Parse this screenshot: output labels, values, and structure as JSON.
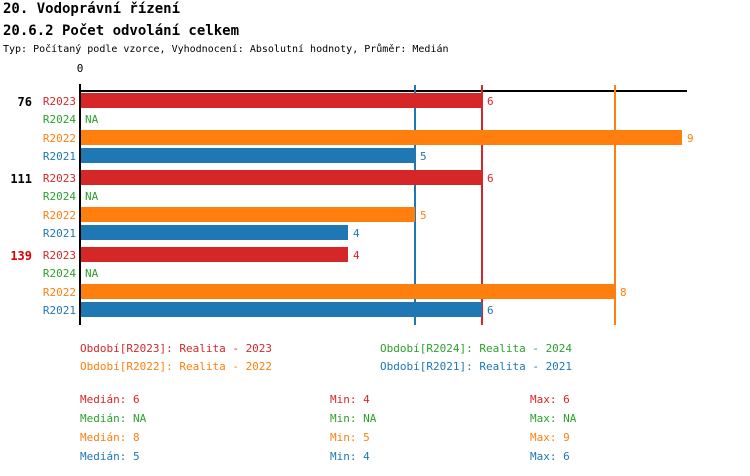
{
  "header": {
    "title": "20. Vodoprávní řízení",
    "subtitle": "20.6.2 Počet odvolání celkem",
    "meta": "Typ: Počítaný podle vzorce, Vyhodnocení: Absolutní hodnoty, Průměr: Medián"
  },
  "colors": {
    "red": "#d62728",
    "green": "#2ca02c",
    "orange": "#ff7f0e",
    "blue": "#1f77b4",
    "axis": "#000000",
    "group_highlight": "#dd0000"
  },
  "chart_data": {
    "type": "bar",
    "orientation": "horizontal",
    "axis": {
      "origin_label": "0",
      "xlim": [
        0,
        9.1
      ],
      "grid": false
    },
    "na_label": "NA",
    "series_colors": {
      "R2023": "#d62728",
      "R2024": "#2ca02c",
      "R2022": "#ff7f0e",
      "R2021": "#1f77b4"
    },
    "groups": [
      {
        "label": "76",
        "label_color": "#000000",
        "bars": [
          {
            "series": "R2023",
            "value": 6
          },
          {
            "series": "R2024",
            "value": null
          },
          {
            "series": "R2022",
            "value": 9
          },
          {
            "series": "R2021",
            "value": 5
          }
        ]
      },
      {
        "label": "111",
        "label_color": "#000000",
        "bars": [
          {
            "series": "R2023",
            "value": 6
          },
          {
            "series": "R2024",
            "value": null
          },
          {
            "series": "R2022",
            "value": 5
          },
          {
            "series": "R2021",
            "value": 4
          }
        ]
      },
      {
        "label": "139",
        "label_color": "#dd0000",
        "bars": [
          {
            "series": "R2023",
            "value": 4
          },
          {
            "series": "R2024",
            "value": null
          },
          {
            "series": "R2022",
            "value": 8
          },
          {
            "series": "R2021",
            "value": 6
          }
        ]
      }
    ],
    "median_lines": [
      {
        "series": "R2021",
        "value": 5
      },
      {
        "series": "R2023",
        "value": 6
      },
      {
        "series": "R2022",
        "value": 8
      }
    ]
  },
  "legend": {
    "columns": [
      {
        "items": [
          {
            "text": "Období[R2023]: Realita - 2023",
            "color": "#d62728"
          },
          {
            "text": "Období[R2022]: Realita - 2022",
            "color": "#ff7f0e"
          }
        ]
      },
      {
        "items": [
          {
            "text": "Období[R2024]: Realita - 2024",
            "color": "#2ca02c"
          },
          {
            "text": "Období[R2021]: Realita - 2021",
            "color": "#1f77b4"
          }
        ]
      }
    ]
  },
  "stats": {
    "rows": [
      {
        "color": "#d62728",
        "cells": [
          "Medián: 6",
          "Min: 4",
          "Max: 6"
        ]
      },
      {
        "color": "#2ca02c",
        "cells": [
          "Medián: NA",
          "Min: NA",
          "Max: NA"
        ]
      },
      {
        "color": "#ff7f0e",
        "cells": [
          "Medián: 8",
          "Min: 5",
          "Max: 9"
        ]
      },
      {
        "color": "#1f77b4",
        "cells": [
          "Medián: 5",
          "Min: 4",
          "Max: 6"
        ]
      }
    ]
  }
}
